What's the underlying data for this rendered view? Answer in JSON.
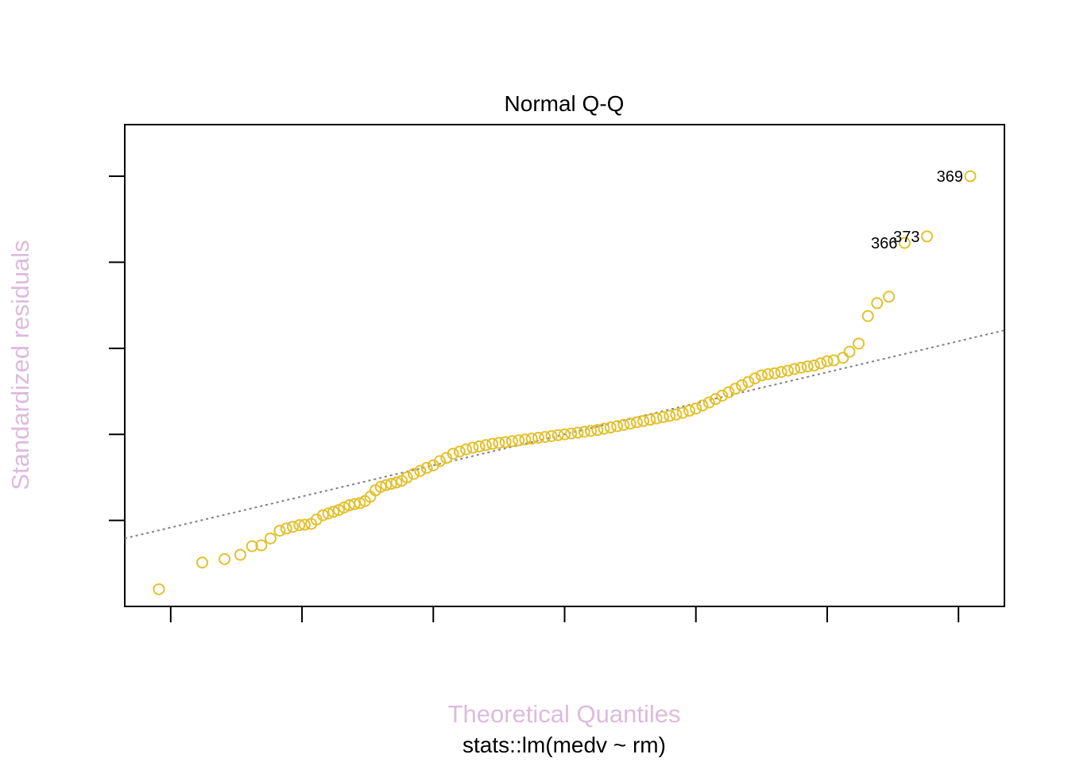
{
  "chart_data": {
    "type": "scatter",
    "title": "Normal Q-Q",
    "xlabel": "Theoretical Quantiles",
    "ylabel": "Standardized residuals",
    "subtitle": "stats::lm(medv ~ rm)",
    "xlim": [
      -3.35,
      3.35
    ],
    "ylim": [
      -4.0,
      7.2
    ],
    "x_ticks": [
      -3,
      -2,
      -1,
      0,
      1,
      2,
      3
    ],
    "y_ticks": [
      -2,
      0,
      2,
      4,
      6
    ],
    "x_tick_labels": [],
    "y_tick_labels": [],
    "grid": false,
    "reference_line": {
      "intercept": 0.0,
      "slope": 0.722,
      "style": "dotted"
    },
    "outlier_labels": [
      {
        "label": "369",
        "x": 3.09,
        "y": 6.0
      },
      {
        "label": "373",
        "x": 2.76,
        "y": 4.6
      },
      {
        "label": "366",
        "x": 2.59,
        "y": 4.45
      }
    ],
    "series": [
      {
        "values": [
          [
            -3.09,
            -3.6
          ],
          [
            -2.76,
            -2.98
          ],
          [
            -2.59,
            -2.9
          ],
          [
            -2.47,
            -2.8
          ],
          [
            -2.38,
            -2.6
          ],
          [
            -2.31,
            -2.58
          ],
          [
            -2.24,
            -2.42
          ],
          [
            -2.17,
            -2.24
          ],
          [
            -2.12,
            -2.19
          ],
          [
            -2.07,
            -2.15
          ],
          [
            -2.02,
            -2.11
          ],
          [
            -1.98,
            -2.1
          ],
          [
            -1.93,
            -2.08
          ],
          [
            -1.89,
            -1.98
          ],
          [
            -1.84,
            -1.88
          ],
          [
            -1.8,
            -1.84
          ],
          [
            -1.76,
            -1.8
          ],
          [
            -1.72,
            -1.76
          ],
          [
            -1.68,
            -1.7
          ],
          [
            -1.64,
            -1.65
          ],
          [
            -1.6,
            -1.62
          ],
          [
            -1.56,
            -1.6
          ],
          [
            -1.52,
            -1.55
          ],
          [
            -1.48,
            -1.45
          ],
          [
            -1.44,
            -1.3
          ],
          [
            -1.4,
            -1.22
          ],
          [
            -1.36,
            -1.18
          ],
          [
            -1.32,
            -1.15
          ],
          [
            -1.28,
            -1.12
          ],
          [
            -1.24,
            -1.08
          ],
          [
            -1.2,
            -1.0
          ],
          [
            -1.15,
            -0.92
          ],
          [
            -1.1,
            -0.85
          ],
          [
            -1.05,
            -0.78
          ],
          [
            -1.0,
            -0.72
          ],
          [
            -0.95,
            -0.62
          ],
          [
            -0.9,
            -0.55
          ],
          [
            -0.85,
            -0.45
          ],
          [
            -0.8,
            -0.4
          ],
          [
            -0.75,
            -0.35
          ],
          [
            -0.7,
            -0.31
          ],
          [
            -0.65,
            -0.28
          ],
          [
            -0.6,
            -0.25
          ],
          [
            -0.55,
            -0.22
          ],
          [
            -0.5,
            -0.2
          ],
          [
            -0.45,
            -0.18
          ],
          [
            -0.4,
            -0.16
          ],
          [
            -0.35,
            -0.14
          ],
          [
            -0.3,
            -0.12
          ],
          [
            -0.25,
            -0.1
          ],
          [
            -0.2,
            -0.08
          ],
          [
            -0.15,
            -0.06
          ],
          [
            -0.1,
            -0.04
          ],
          [
            -0.05,
            -0.02
          ],
          [
            0.0,
            0.0
          ],
          [
            0.05,
            0.02
          ],
          [
            0.1,
            0.04
          ],
          [
            0.15,
            0.06
          ],
          [
            0.2,
            0.08
          ],
          [
            0.25,
            0.1
          ],
          [
            0.3,
            0.13
          ],
          [
            0.35,
            0.16
          ],
          [
            0.4,
            0.19
          ],
          [
            0.45,
            0.22
          ],
          [
            0.5,
            0.25
          ],
          [
            0.55,
            0.28
          ],
          [
            0.6,
            0.31
          ],
          [
            0.65,
            0.34
          ],
          [
            0.7,
            0.37
          ],
          [
            0.75,
            0.4
          ],
          [
            0.8,
            0.43
          ],
          [
            0.85,
            0.46
          ],
          [
            0.9,
            0.5
          ],
          [
            0.95,
            0.55
          ],
          [
            1.0,
            0.6
          ],
          [
            1.05,
            0.67
          ],
          [
            1.1,
            0.74
          ],
          [
            1.15,
            0.82
          ],
          [
            1.2,
            0.9
          ],
          [
            1.25,
            0.98
          ],
          [
            1.3,
            1.06
          ],
          [
            1.35,
            1.14
          ],
          [
            1.4,
            1.22
          ],
          [
            1.45,
            1.3
          ],
          [
            1.5,
            1.37
          ],
          [
            1.55,
            1.4
          ],
          [
            1.6,
            1.42
          ],
          [
            1.65,
            1.45
          ],
          [
            1.7,
            1.48
          ],
          [
            1.75,
            1.52
          ],
          [
            1.8,
            1.55
          ],
          [
            1.85,
            1.58
          ],
          [
            1.9,
            1.6
          ],
          [
            1.95,
            1.65
          ],
          [
            2.0,
            1.7
          ],
          [
            2.05,
            1.72
          ],
          [
            2.12,
            1.78
          ],
          [
            2.17,
            1.92
          ],
          [
            2.24,
            2.11
          ],
          [
            2.31,
            2.75
          ],
          [
            2.38,
            3.05
          ],
          [
            2.47,
            3.2
          ],
          [
            2.59,
            4.45
          ],
          [
            2.76,
            4.6
          ],
          [
            3.09,
            6.0
          ]
        ]
      }
    ],
    "colors": {
      "points": "#E3C02D",
      "reference_line": "#808080",
      "axis": "#000000",
      "axis_label": "#DDBBDD"
    }
  }
}
